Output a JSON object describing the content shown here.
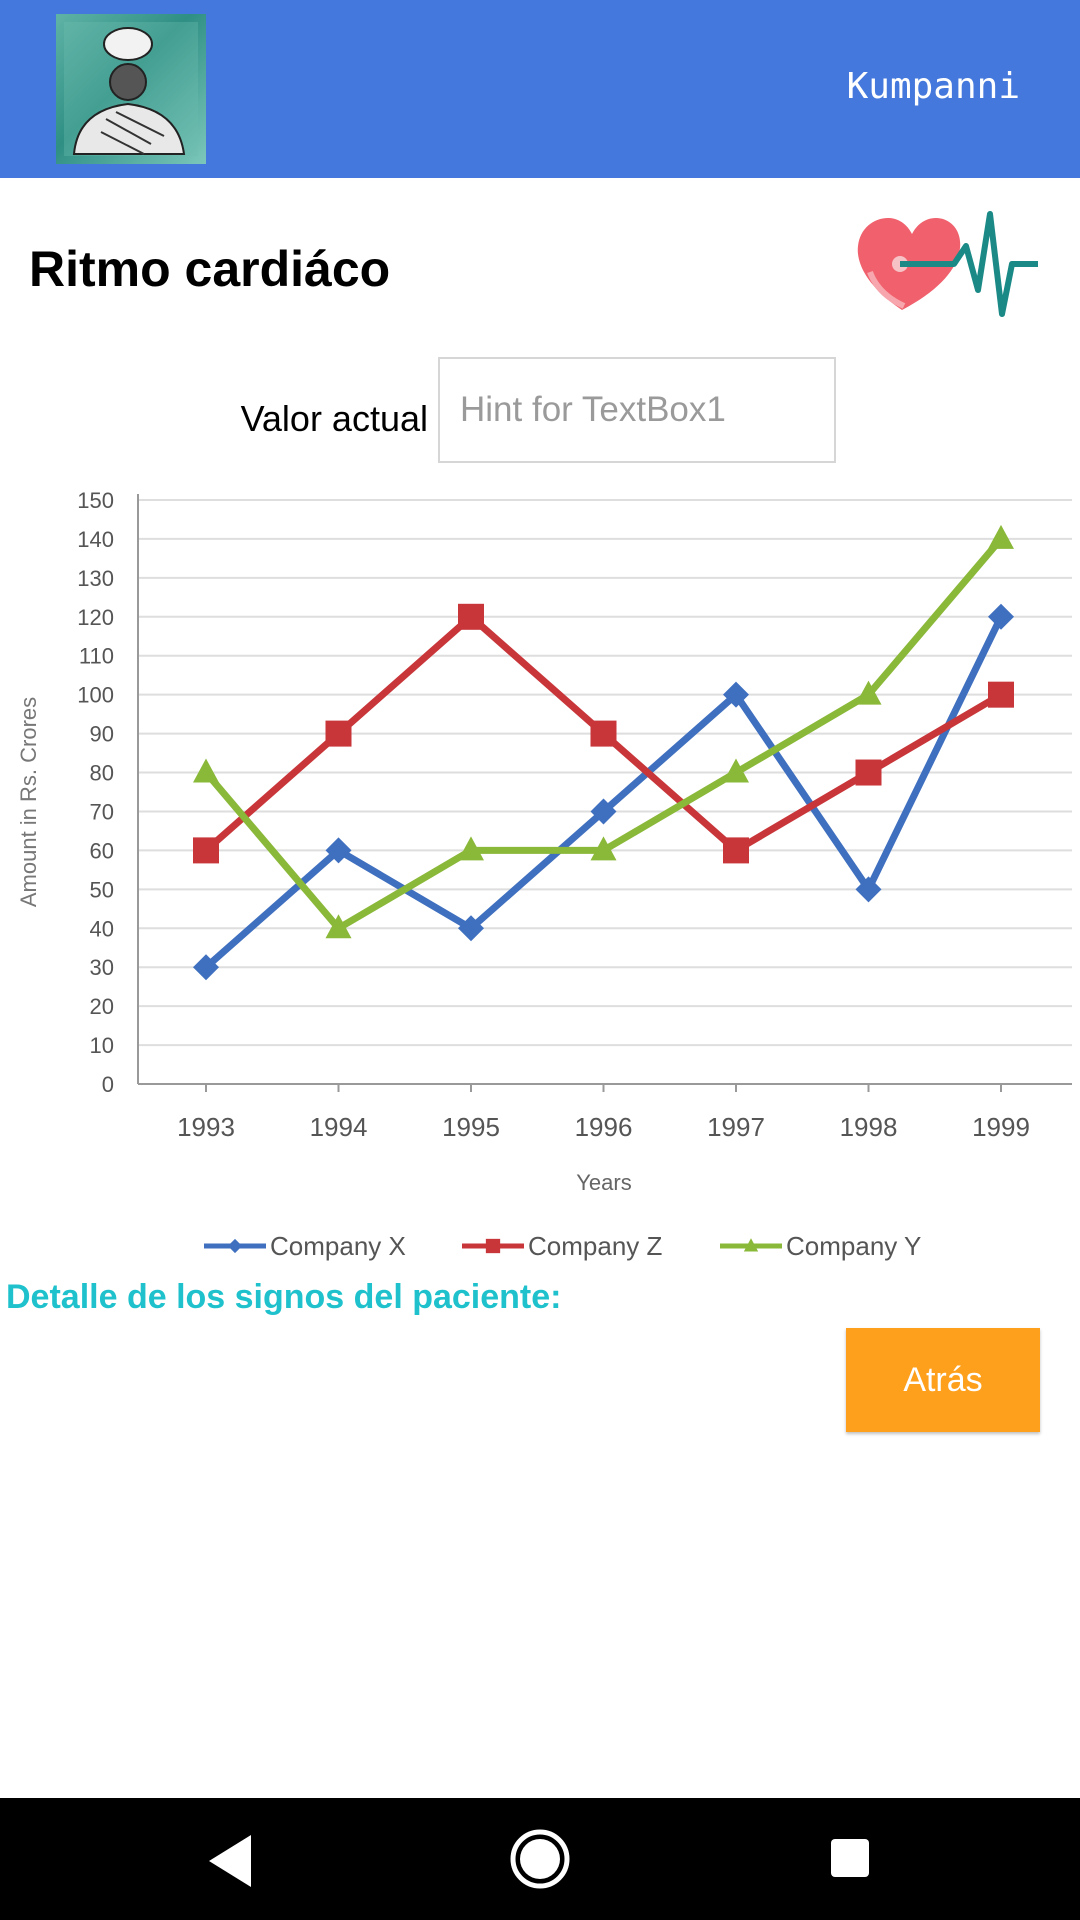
{
  "appbar": {
    "app_name": "Kumpanni",
    "avatar_icon": "patient-avatar-icon",
    "color": "#4578dc"
  },
  "header": {
    "title": "Ritmo cardiáco",
    "icon": "heart-rate-icon"
  },
  "current_value": {
    "label": "Valor actual",
    "placeholder": "Hint for TextBox1",
    "value": ""
  },
  "chart_data": {
    "type": "line",
    "title": "",
    "xlabel": "Years",
    "ylabel": "Amount in Rs. Crores",
    "ylim": [
      0,
      150
    ],
    "yticks": [
      0,
      10,
      20,
      30,
      40,
      50,
      60,
      70,
      80,
      90,
      100,
      110,
      120,
      130,
      140,
      150
    ],
    "categories": [
      "1993",
      "1994",
      "1995",
      "1996",
      "1997",
      "1998",
      "1999"
    ],
    "grid": true,
    "legend": "bottom",
    "series": [
      {
        "name": "Company X",
        "values": [
          30,
          60,
          40,
          70,
          100,
          50,
          120
        ],
        "color": "#3f6fbf",
        "marker": "diamond"
      },
      {
        "name": "Company Z",
        "values": [
          60,
          90,
          120,
          90,
          60,
          80,
          100
        ],
        "color": "#c8363a",
        "marker": "square"
      },
      {
        "name": "Company Y",
        "values": [
          80,
          40,
          60,
          60,
          80,
          100,
          140
        ],
        "color": "#8ab838",
        "marker": "triangle"
      }
    ]
  },
  "details": {
    "label": "Detalle de los signos del paciente:",
    "color": "#1fc2cc"
  },
  "back_button": {
    "label": "Atrás",
    "color": "#ffa01c"
  },
  "navbar": {
    "back_icon": "back-triangle-icon",
    "home_icon": "home-circle-icon",
    "recent_icon": "recent-apps-icon"
  }
}
